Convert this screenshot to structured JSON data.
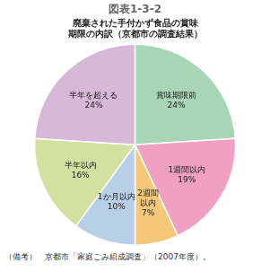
{
  "chart_data": {
    "type": "pie",
    "title": "図表1-3-2",
    "subtitle": [
      "廃棄された手付かず食品の賞味",
      "期限の内訳（京都市の調査結果）"
    ],
    "annotations": [
      "（備考）　京都市「家庭ごみ組成調査」（2007年度）。"
    ],
    "categories": [
      "賞味期限前",
      "1週間以内",
      "2週間\n以内",
      "1か月以内",
      "半年以内",
      "半年を超える"
    ],
    "values": [
      24,
      19,
      7,
      10,
      16,
      24
    ],
    "value_labels": [
      "24%",
      "19%",
      "7%",
      "10%",
      "16%",
      "24%"
    ],
    "colors": [
      "#a8d5b5",
      "#f0a0c0",
      "#f5c87a",
      "#b8cfe8",
      "#d4e0a0",
      "#d8b8d8"
    ],
    "data_labels": true
  }
}
